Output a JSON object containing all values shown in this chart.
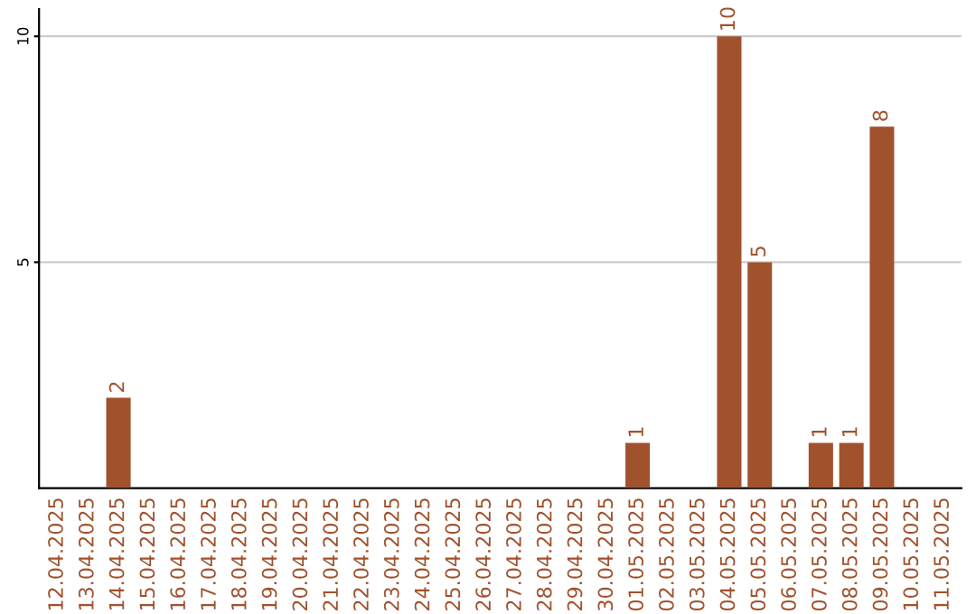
{
  "chart_data": {
    "type": "bar",
    "categories": [
      "12.04.2025",
      "13.04.2025",
      "14.04.2025",
      "15.04.2025",
      "16.04.2025",
      "17.04.2025",
      "18.04.2025",
      "19.04.2025",
      "20.04.2025",
      "21.04.2025",
      "22.04.2025",
      "23.04.2025",
      "24.04.2025",
      "25.04.2025",
      "26.04.2025",
      "27.04.2025",
      "28.04.2025",
      "29.04.2025",
      "30.04.2025",
      "01.05.2025",
      "02.05.2025",
      "03.05.2025",
      "04.05.2025",
      "05.05.2025",
      "06.05.2025",
      "07.05.2025",
      "08.05.2025",
      "09.05.2025",
      "10.05.2025",
      "11.05.2025"
    ],
    "values": [
      0,
      0,
      2,
      0,
      0,
      0,
      0,
      0,
      0,
      0,
      0,
      0,
      0,
      0,
      0,
      0,
      0,
      0,
      0,
      1,
      0,
      0,
      10,
      5,
      0,
      1,
      1,
      8,
      0,
      0
    ],
    "value_labels": [
      null,
      null,
      "2",
      null,
      null,
      null,
      null,
      null,
      null,
      null,
      null,
      null,
      null,
      null,
      null,
      null,
      null,
      null,
      null,
      "1",
      null,
      null,
      "10",
      "5",
      null,
      "1",
      "1",
      "8",
      null,
      null
    ],
    "color": "#a0522d",
    "ylim": [
      0,
      10.6
    ],
    "yticks": [
      5,
      10
    ],
    "grid": "y"
  }
}
